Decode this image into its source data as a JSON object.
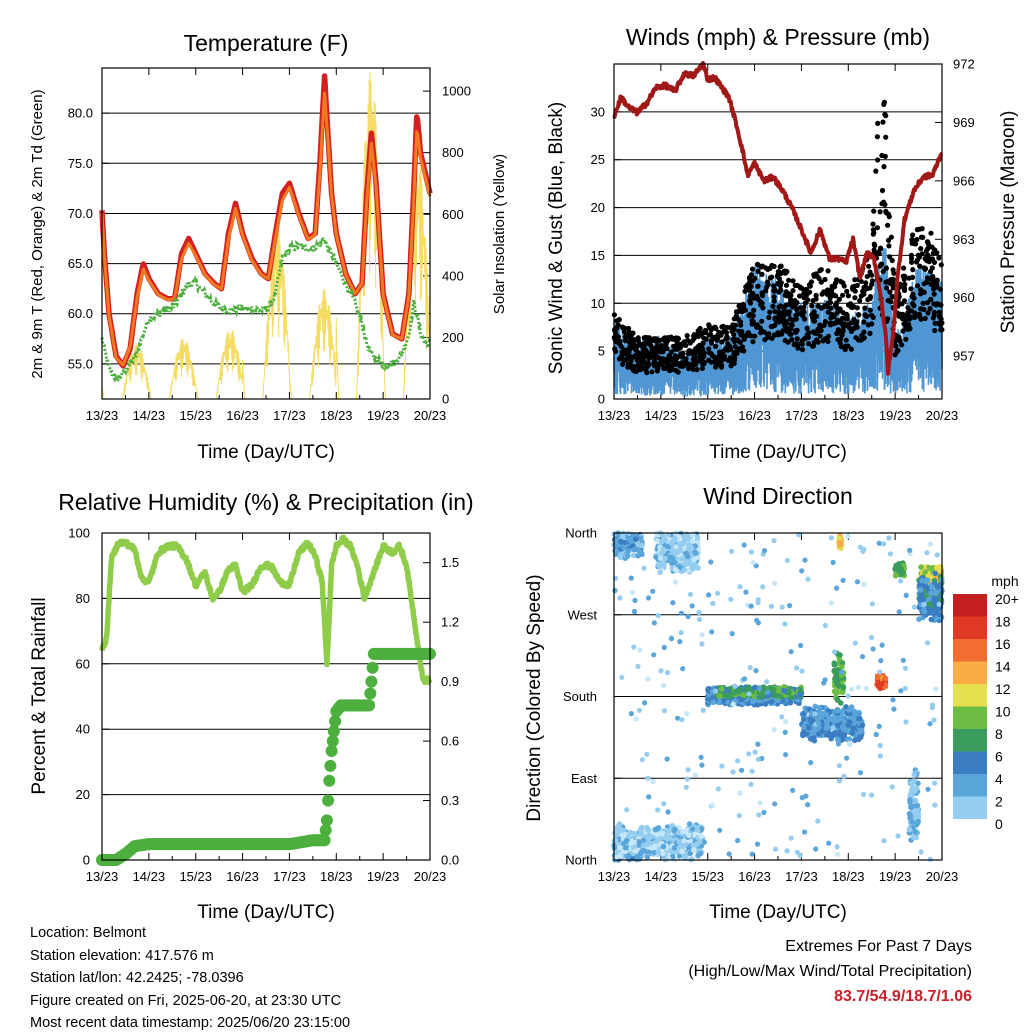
{
  "colors": {
    "temp2m": "#d42020",
    "temp9m": "#f07a22",
    "dewpoint": "#4caf3e",
    "solar": "#f5dc64",
    "wind": "#4f96d2",
    "gust": "#000000",
    "pressure": "#a01818",
    "rh": "#8fcc4a",
    "precip": "#4caf3e",
    "wd_scale": [
      "#c6e7f7",
      "#94cdef",
      "#5aa6da",
      "#3b7dc2",
      "#3a9c5c",
      "#6dbd45",
      "#e5e04f",
      "#f9ad44",
      "#f26d32",
      "#e03a26",
      "#c3201f",
      "#951515"
    ]
  },
  "x_ticks": [
    "13/23",
    "14/23",
    "15/23",
    "16/23",
    "17/23",
    "18/23",
    "19/23",
    "20/23"
  ],
  "xlabel": "Time (Day/UTC)",
  "panels": {
    "temp": {
      "title": "Temperature (F)",
      "ylabel": "2m & 9m T (Red, Orange) & 2m Td (Green)",
      "y2label": "Solar Insolation (Yellow)"
    },
    "wind": {
      "title": "Winds (mph) & Pressure (mb)",
      "ylabel": "Sonic Wind & Gust (Blue, Black)",
      "y2label": "Station Pressure (Maroon)"
    },
    "rh": {
      "title": "Relative Humidity (%) & Precipitation (in)",
      "ylabel": "Percent & Total Rainfall"
    },
    "wd": {
      "title": "Wind Direction",
      "ylabel": "Direction (Colored By Speed)",
      "legend_title": "mph",
      "legend_labels": [
        "20+",
        "18",
        "16",
        "14",
        "12",
        "10",
        "8",
        "6",
        "4",
        "2",
        "0"
      ]
    }
  },
  "chart_data": [
    {
      "type": "line",
      "panel": "temp",
      "title": "Temperature (F)",
      "xlabel": "Time (Day/UTC)",
      "ylabel": "2m & 9m T (Red, Orange) & 2m Td (Green)",
      "y2label": "Solar Insolation (Yellow)",
      "x": [
        13.0,
        13.05,
        13.15,
        13.3,
        13.45,
        13.6,
        13.75,
        13.88,
        14.0,
        14.2,
        14.4,
        14.55,
        14.7,
        14.85,
        15.0,
        15.2,
        15.4,
        15.55,
        15.7,
        15.85,
        16.0,
        16.2,
        16.4,
        16.55,
        16.7,
        16.85,
        17.0,
        17.2,
        17.4,
        17.55,
        17.65,
        17.75,
        17.82,
        17.9,
        18.0,
        18.2,
        18.4,
        18.55,
        18.65,
        18.75,
        18.85,
        19.0,
        19.2,
        19.4,
        19.55,
        19.65,
        19.72,
        19.8,
        19.9,
        20.0
      ],
      "x_tick_labels": [
        "13/23",
        "14/23",
        "15/23",
        "16/23",
        "17/23",
        "18/23",
        "19/23",
        "20/23"
      ],
      "ylim": [
        51.5,
        84.5
      ],
      "y_ticks": [
        "55.0",
        "60.0",
        "65.0",
        "70.0",
        "75.0",
        "80.0"
      ],
      "y2lim": [
        0,
        1075
      ],
      "y2_ticks": [
        "0",
        "200",
        "400",
        "600",
        "800",
        "1000"
      ],
      "series": [
        {
          "name": "2m T",
          "axis": "left",
          "values": [
            70.3,
            66.0,
            60.0,
            55.8,
            54.8,
            56.5,
            62.0,
            65.0,
            63.5,
            62.0,
            61.5,
            61.5,
            66.0,
            67.5,
            66.0,
            64.0,
            63.0,
            62.5,
            68.0,
            71.0,
            68.0,
            65.5,
            64.0,
            63.5,
            68.0,
            72.0,
            73.0,
            70.0,
            67.5,
            68.0,
            75.0,
            83.7,
            78.0,
            72.0,
            68.0,
            64.0,
            62.0,
            63.0,
            72.0,
            78.0,
            73.0,
            62.0,
            58.0,
            57.5,
            62.0,
            72.0,
            80.0,
            76.0,
            74.0,
            72.0
          ]
        },
        {
          "name": "9m T",
          "axis": "left",
          "values": [
            70.0,
            65.8,
            59.8,
            55.6,
            54.9,
            56.7,
            61.6,
            64.5,
            63.3,
            61.9,
            61.4,
            61.5,
            65.5,
            67.0,
            65.8,
            63.9,
            62.9,
            62.5,
            67.5,
            70.5,
            67.8,
            65.3,
            63.9,
            63.5,
            67.5,
            71.3,
            72.6,
            69.8,
            67.4,
            67.9,
            74.0,
            82.0,
            77.5,
            71.8,
            67.9,
            63.9,
            62.0,
            63.0,
            71.2,
            77.0,
            72.6,
            61.8,
            57.9,
            57.5,
            61.8,
            71.0,
            78.5,
            75.5,
            73.6,
            71.7
          ]
        },
        {
          "name": "2m Td",
          "axis": "left",
          "values": [
            57.5,
            56.5,
            54.5,
            53.5,
            54.0,
            55.0,
            56.0,
            58.0,
            59.5,
            60.0,
            60.5,
            60.8,
            62.0,
            63.0,
            63.0,
            62.0,
            61.0,
            60.5,
            60.3,
            60.5,
            60.5,
            60.5,
            60.4,
            60.5,
            62.0,
            65.5,
            66.5,
            66.8,
            66.5,
            66.6,
            67.0,
            67.5,
            66.5,
            66.0,
            65.0,
            63.0,
            61.0,
            59.0,
            57.0,
            56.0,
            55.5,
            55.0,
            55.0,
            56.0,
            58.0,
            61.0,
            60.0,
            58.0,
            57.0,
            57.0
          ]
        }
      ]
    },
    {
      "type": "line",
      "panel": "wind",
      "title": "Winds (mph) & Pressure (mb)",
      "xlabel": "Time (Day/UTC)",
      "ylabel": "Sonic Wind & Gust (Blue, Black)",
      "y2label": "Station Pressure (Maroon)",
      "x_tick_labels": [
        "13/23",
        "14/23",
        "15/23",
        "16/23",
        "17/23",
        "18/23",
        "19/23",
        "20/23"
      ],
      "ylim": [
        0,
        35
      ],
      "y_ticks": [
        "0",
        "5",
        "10",
        "15",
        "20",
        "25",
        "30"
      ],
      "y2lim": [
        954.8,
        972
      ],
      "y2_ticks": [
        "957",
        "960",
        "963",
        "966",
        "969",
        "972"
      ],
      "series": [
        {
          "name": "Pressure",
          "axis": "right",
          "x": [
            13.0,
            13.15,
            13.3,
            13.5,
            13.7,
            13.9,
            14.1,
            14.3,
            14.5,
            14.7,
            14.9,
            15.0,
            15.15,
            15.3,
            15.45,
            15.6,
            15.75,
            15.85,
            16.0,
            16.2,
            16.4,
            16.6,
            16.8,
            17.0,
            17.2,
            17.4,
            17.6,
            17.8,
            17.95,
            18.1,
            18.25,
            18.4,
            18.55,
            18.7,
            18.8,
            18.85,
            18.95,
            19.05,
            19.2,
            19.4,
            19.6,
            19.8,
            20.0
          ],
          "values": [
            969.3,
            970.3,
            969.8,
            969.5,
            970.0,
            970.8,
            970.9,
            970.6,
            971.5,
            971.4,
            972.0,
            971.2,
            971.3,
            970.8,
            970.3,
            969.0,
            967.5,
            966.3,
            966.9,
            966.0,
            966.2,
            965.5,
            964.6,
            963.5,
            962.3,
            963.5,
            962.0,
            962.0,
            961.8,
            963.0,
            961.0,
            962.3,
            962.0,
            960.0,
            958.0,
            956.2,
            958.0,
            961.0,
            964.0,
            965.5,
            966.2,
            966.3,
            967.5
          ]
        },
        {
          "name": "Sonic Wind (mean level)",
          "axis": "left",
          "x": [
            13.0,
            13.5,
            14.0,
            14.5,
            15.0,
            15.5,
            16.0,
            16.5,
            17.0,
            17.5,
            18.0,
            18.5,
            18.75,
            19.0,
            19.5,
            20.0
          ],
          "values": [
            4,
            3,
            3,
            2,
            3,
            3,
            7,
            6,
            5,
            5,
            4,
            5,
            9,
            3,
            7,
            6
          ]
        },
        {
          "name": "Gust (mean level)",
          "axis": "left",
          "x": [
            13.0,
            13.5,
            14.0,
            14.5,
            15.0,
            15.5,
            16.0,
            16.5,
            17.0,
            17.5,
            18.0,
            18.5,
            18.75,
            19.0,
            19.5,
            20.0
          ],
          "values": [
            7,
            5,
            5,
            5,
            6,
            6,
            11,
            11,
            9,
            11,
            9,
            12,
            32,
            8,
            15,
            12
          ]
        }
      ]
    },
    {
      "type": "line",
      "panel": "rh",
      "title": "Relative Humidity (%) & Precipitation (in)",
      "xlabel": "Time (Day/UTC)",
      "ylabel": "Percent & Total Rainfall",
      "x_tick_labels": [
        "13/23",
        "14/23",
        "15/23",
        "16/23",
        "17/23",
        "18/23",
        "19/23",
        "20/23"
      ],
      "ylim": [
        0,
        100
      ],
      "y_ticks": [
        "0",
        "20",
        "40",
        "60",
        "80",
        "100"
      ],
      "y2lim": [
        0,
        1.65
      ],
      "y2_ticks": [
        "0.0",
        "0.3",
        "0.6",
        "0.9",
        "1.2",
        "1.5"
      ],
      "series": [
        {
          "name": "RH",
          "axis": "left",
          "x": [
            13.0,
            13.1,
            13.2,
            13.35,
            13.5,
            13.7,
            13.85,
            14.0,
            14.2,
            14.4,
            14.6,
            14.8,
            15.0,
            15.2,
            15.35,
            15.5,
            15.7,
            15.85,
            16.0,
            16.2,
            16.4,
            16.6,
            16.8,
            17.0,
            17.2,
            17.4,
            17.55,
            17.7,
            17.8,
            17.9,
            18.0,
            18.15,
            18.3,
            18.45,
            18.6,
            18.8,
            19.0,
            19.2,
            19.35,
            19.5,
            19.7,
            19.85,
            20.0
          ],
          "values": [
            64,
            68,
            92,
            97,
            97,
            95,
            86,
            85,
            94,
            96,
            96,
            92,
            84,
            88,
            80,
            82,
            89,
            90,
            82,
            84,
            90,
            90,
            85,
            84,
            94,
            97,
            93,
            85,
            60,
            90,
            96,
            98,
            96,
            90,
            80,
            88,
            96,
            94,
            96,
            90,
            70,
            55,
            55
          ]
        },
        {
          "name": "Total Rainfall",
          "axis": "right",
          "x": [
            13.0,
            13.3,
            13.5,
            13.7,
            14.0,
            15.0,
            16.0,
            17.0,
            17.25,
            17.5,
            17.75,
            17.8,
            17.85,
            17.9,
            17.95,
            18.0,
            18.1,
            18.2,
            18.3,
            18.4,
            18.5,
            18.7,
            18.75,
            18.8,
            19.0,
            19.5,
            20.0
          ],
          "values": [
            0.0,
            0.0,
            0.03,
            0.07,
            0.08,
            0.08,
            0.08,
            0.08,
            0.09,
            0.1,
            0.1,
            0.2,
            0.4,
            0.55,
            0.65,
            0.75,
            0.78,
            0.78,
            0.78,
            0.78,
            0.78,
            0.78,
            0.9,
            1.04,
            1.04,
            1.04,
            1.04
          ]
        }
      ]
    },
    {
      "type": "scatter",
      "panel": "wd",
      "title": "Wind Direction",
      "xlabel": "Time (Day/UTC)",
      "ylabel": "Direction (Colored By Speed)",
      "x_tick_labels": [
        "13/23",
        "14/23",
        "15/23",
        "16/23",
        "17/23",
        "18/23",
        "19/23",
        "20/23"
      ],
      "y_ticks": [
        "North",
        "East",
        "South",
        "West",
        "North"
      ],
      "ylim": [
        0,
        360
      ],
      "legend_title": "mph",
      "legend_levels": [
        "0",
        "2",
        "4",
        "6",
        "8",
        "10",
        "12",
        "14",
        "16",
        "18",
        "20+"
      ],
      "clusters": [
        {
          "day_start": 13.0,
          "day_end": 13.6,
          "dir": 350,
          "spread": 20,
          "speed": 4
        },
        {
          "day_start": 13.0,
          "day_end": 14.9,
          "dir": 20,
          "spread": 20,
          "speed": 2
        },
        {
          "day_start": 13.9,
          "day_end": 14.8,
          "dir": 340,
          "spread": 25,
          "speed": 2
        },
        {
          "day_start": 15.0,
          "day_end": 17.0,
          "dir": 180,
          "spread": 10,
          "speed": 5
        },
        {
          "day_start": 15.2,
          "day_end": 17.0,
          "dir": 185,
          "spread": 6,
          "speed": 8
        },
        {
          "day_start": 17.0,
          "day_end": 18.3,
          "dir": 150,
          "spread": 20,
          "speed": 5
        },
        {
          "day_start": 17.7,
          "day_end": 17.9,
          "dir": 200,
          "spread": 30,
          "speed": 9
        },
        {
          "day_start": 17.8,
          "day_end": 17.85,
          "dir": 350,
          "spread": 8,
          "speed": 13
        },
        {
          "day_start": 18.6,
          "day_end": 18.8,
          "dir": 196,
          "spread": 8,
          "speed": 16
        },
        {
          "day_start": 19.0,
          "day_end": 19.2,
          "dir": 320,
          "spread": 8,
          "speed": 9
        },
        {
          "day_start": 19.55,
          "day_end": 20.0,
          "dir": 315,
          "spread": 10,
          "speed": 12
        },
        {
          "day_start": 19.5,
          "day_end": 20.0,
          "dir": 290,
          "spread": 30,
          "speed": 6
        },
        {
          "day_start": 19.3,
          "day_end": 19.5,
          "dir": 60,
          "spread": 50,
          "speed": 3
        }
      ]
    }
  ],
  "footer": [
    "Location: Belmont",
    "Station elevation: 417.576 m",
    "Station lat/lon: 42.2425; -78.0396",
    "Figure created on Fri, 2025-06-20, at 23:30 UTC",
    "Most recent data timestamp: 2025/06/20 23:15:00"
  ],
  "extremes": {
    "title": "Extremes For Past 7 Days",
    "subtitle": "(High/Low/Max Wind/Total Precipitation)",
    "values": "83.7/54.9/18.7/1.06"
  }
}
